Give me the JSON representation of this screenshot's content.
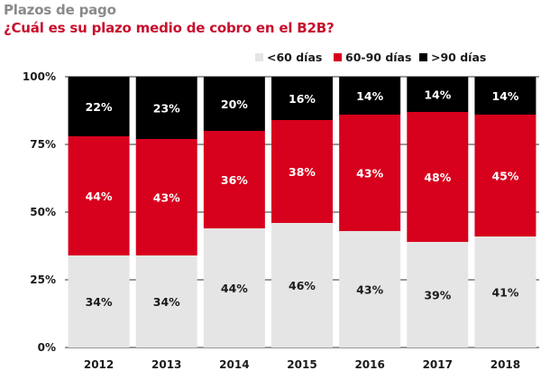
{
  "header": {
    "kicker": "Plazos de pago",
    "title": "¿Cuál es su plazo medio de cobro en el B2B?"
  },
  "colors": {
    "lt60": "#e5e5e5",
    "60to90": "#d7001d",
    "gt90": "#000000",
    "label_on_light": "#1a1a1a",
    "label_on_dark": "#ffffff",
    "grid": "#333333"
  },
  "chart_data": {
    "type": "bar",
    "stacked": true,
    "categories": [
      "2012",
      "2013",
      "2014",
      "2015",
      "2016",
      "2017",
      "2018"
    ],
    "series": [
      {
        "name": "<60 días",
        "key": "lt60",
        "values": [
          34,
          34,
          44,
          46,
          43,
          39,
          41
        ],
        "labels": [
          "34%",
          "34%",
          "44%",
          "46%",
          "43%",
          "39%",
          "41%"
        ]
      },
      {
        "name": "60-90 días",
        "key": "60to90",
        "values": [
          44,
          43,
          36,
          38,
          43,
          48,
          45
        ],
        "labels": [
          "44%",
          "43%",
          "36%",
          "38%",
          "43%",
          "48%",
          "45%"
        ]
      },
      {
        "name": ">90 días",
        "key": "gt90",
        "values": [
          22,
          23,
          20,
          16,
          14,
          14,
          14
        ],
        "labels": [
          "22%",
          "23%",
          "20%",
          "16%",
          "14%",
          "14%",
          "14%"
        ]
      }
    ],
    "yticks": [
      0,
      25,
      50,
      75,
      100
    ],
    "ytick_labels": [
      "0%",
      "25%",
      "50%",
      "75%",
      "100%"
    ],
    "ylim": [
      0,
      100
    ],
    "legend_position": "top-right",
    "grid": true
  }
}
